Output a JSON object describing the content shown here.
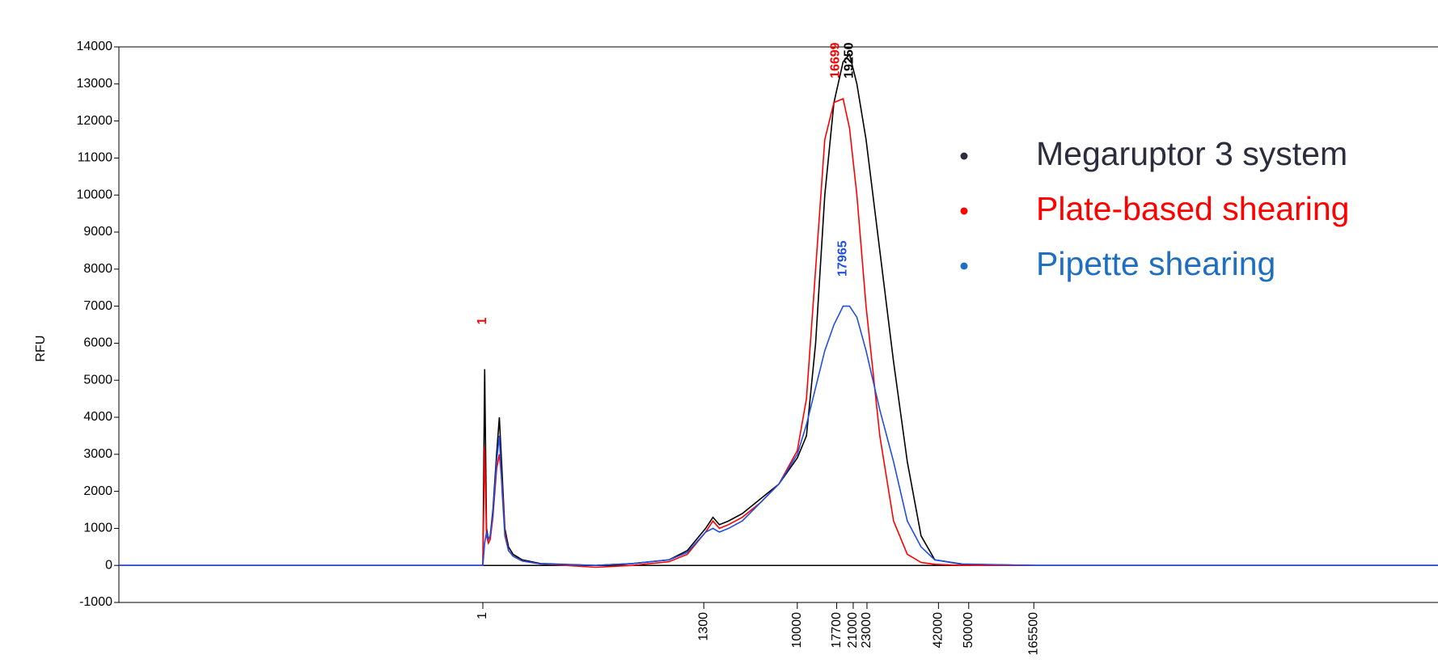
{
  "chart_data": {
    "type": "line",
    "y_label": "RFU",
    "x": [
      0,
      395,
      397,
      399,
      401,
      403,
      405,
      408,
      412,
      415,
      418,
      421,
      425,
      430,
      440,
      460,
      520,
      560,
      600,
      620,
      640,
      648,
      655,
      665,
      680,
      700,
      720,
      740,
      750,
      760,
      770,
      780,
      790,
      797,
      805,
      815,
      830,
      845,
      860,
      875,
      890,
      920,
      1000,
      1440
    ],
    "series": [
      {
        "name": "Megaruptor 3 system",
        "color": "#000000",
        "legend_color": "#2b2d3c",
        "values": [
          0,
          0,
          0,
          5300,
          1000,
          700,
          800,
          1500,
          3000,
          4000,
          2500,
          1000,
          500,
          300,
          150,
          50,
          0,
          50,
          150,
          400,
          1000,
          1300,
          1100,
          1200,
          1400,
          1800,
          2200,
          2900,
          3500,
          6000,
          10000,
          12500,
          13600,
          13800,
          13000,
          11500,
          8500,
          5500,
          2800,
          800,
          150,
          30,
          0,
          0
        ]
      },
      {
        "name": "Plate-based shearing",
        "color": "#ff0000",
        "legend_color": "#ff0000",
        "values": [
          0,
          0,
          0,
          3200,
          800,
          600,
          700,
          1300,
          2600,
          3000,
          2200,
          900,
          400,
          250,
          120,
          40,
          -50,
          0,
          100,
          300,
          900,
          1200,
          1000,
          1100,
          1300,
          1700,
          2200,
          3100,
          4500,
          8000,
          11500,
          12500,
          12600,
          11800,
          10000,
          7000,
          3500,
          1200,
          300,
          80,
          30,
          0,
          0,
          0
        ]
      },
      {
        "name": "Pipette shearing",
        "color": "#1f4fe0",
        "legend_color": "#1f6fc0",
        "values": [
          0,
          0,
          0,
          600,
          900,
          700,
          800,
          1400,
          2800,
          3500,
          2000,
          800,
          400,
          250,
          120,
          40,
          0,
          50,
          150,
          350,
          900,
          1000,
          900,
          1000,
          1200,
          1700,
          2200,
          3000,
          3800,
          4800,
          5800,
          6500,
          7000,
          7000,
          6700,
          5800,
          4200,
          2800,
          1200,
          500,
          150,
          40,
          0,
          0
        ]
      }
    ],
    "xlim": [
      0,
      1438
    ],
    "xticks": [
      {
        "value": 397,
        "label": "1"
      },
      {
        "value": 638,
        "label": "1300"
      },
      {
        "value": 740,
        "label": "10000"
      },
      {
        "value": 783,
        "label": "17700"
      },
      {
        "value": 801,
        "label": "21000"
      },
      {
        "value": 816,
        "label": "23000"
      },
      {
        "value": 894,
        "label": "42000"
      },
      {
        "value": 927,
        "label": "50000"
      },
      {
        "value": 998,
        "label": "165500"
      }
    ],
    "ylim": [
      -1000,
      14000
    ],
    "yticks": [
      -1000,
      0,
      1000,
      2000,
      3000,
      4000,
      5000,
      6000,
      7000,
      8000,
      9000,
      10000,
      11000,
      12000,
      13000,
      14000
    ],
    "annotations": [
      {
        "text": "1",
        "x": 397,
        "y": 6500,
        "color": "#ff0000"
      },
      {
        "text": "16699",
        "x": 782,
        "y": 13150,
        "color": "#ff0000"
      },
      {
        "text": "19250",
        "x": 797,
        "y": 13150,
        "color": "#000000"
      },
      {
        "text": "17965",
        "x": 790,
        "y": 7800,
        "color": "#1f4fe0"
      }
    ]
  }
}
